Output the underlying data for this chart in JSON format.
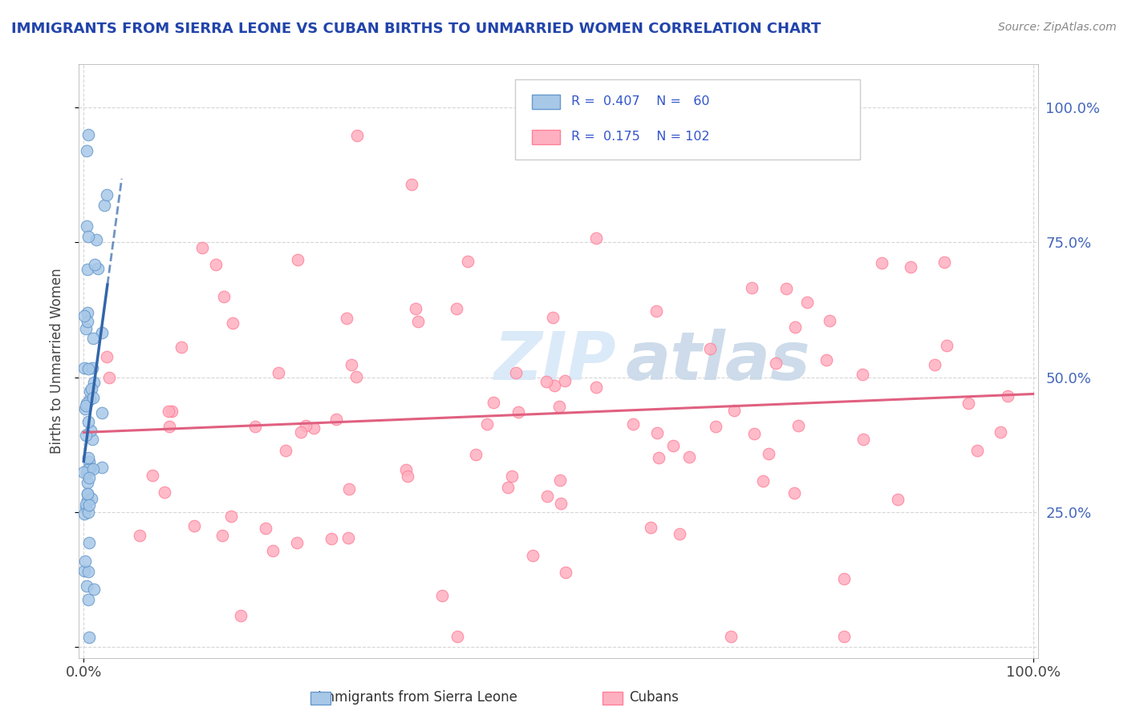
{
  "title": "IMMIGRANTS FROM SIERRA LEONE VS CUBAN BIRTHS TO UNMARRIED WOMEN CORRELATION CHART",
  "source": "Source: ZipAtlas.com",
  "ylabel": "Births to Unmarried Women",
  "x_tick_labels": [
    "0.0%",
    "100.0%"
  ],
  "y_tick_labels_right": [
    "25.0%",
    "50.0%",
    "75.0%",
    "100.0%"
  ],
  "legend_labels": [
    "Immigrants from Sierra Leone",
    "Cubans"
  ],
  "legend_r": [
    0.407,
    0.175
  ],
  "legend_n": [
    60,
    102
  ],
  "blue_face_color": "#A8C8E8",
  "blue_edge_color": "#6699CC",
  "blue_line_color": "#3366AA",
  "pink_face_color": "#FFB0C0",
  "pink_edge_color": "#FF8099",
  "pink_line_color": "#E06080",
  "title_color": "#2244AA",
  "rn_color": "#3355CC",
  "watermark_color": "#D8E8F8",
  "grid_color": "#CCCCCC",
  "right_axis_color": "#4466BB"
}
